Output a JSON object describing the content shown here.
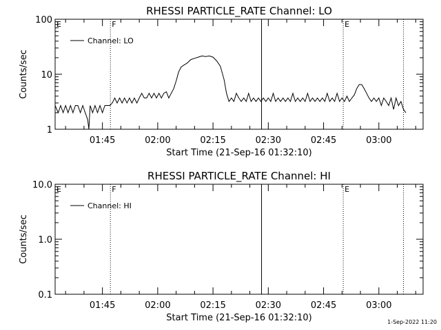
{
  "footer": {
    "timestamp": "1-Sep-2022 11:20"
  },
  "chart_data": [
    {
      "type": "line",
      "title": "RHESSI PARTICLE_RATE Channel: LO",
      "xlabel": "Start Time (21-Sep-16 01:32:10)",
      "ylabel": "Counts/sec",
      "y_scale": "log",
      "ylim": [
        1,
        100
      ],
      "y_ticks": [
        "1",
        "10",
        "100"
      ],
      "xlim": [
        "01:32:10",
        "03:12:00"
      ],
      "x_ticks": [
        "01:45",
        "02:00",
        "02:15",
        "02:30",
        "02:45",
        "03:00"
      ],
      "legend": {
        "entries": [
          "Channel: LO"
        ],
        "placement": "top-left"
      },
      "grid": false,
      "flags": [
        {
          "label": "E",
          "time": "01:32:10",
          "line": "none"
        },
        {
          "label": "F",
          "time": "01:47:10",
          "line": "dotted"
        },
        {
          "label": "",
          "time": "02:28:10",
          "line": "solid"
        },
        {
          "label": "E",
          "time": "02:50:20",
          "line": "dotted"
        },
        {
          "label": "",
          "time": "03:06:40",
          "line": "dotted"
        }
      ],
      "series": [
        {
          "name": "Channel: LO",
          "points": [
            [
              "01:32:10",
              2.7
            ],
            [
              "01:33:00",
              2.0
            ],
            [
              "01:33:40",
              2.7
            ],
            [
              "01:34:20",
              2.0
            ],
            [
              "01:35:00",
              2.7
            ],
            [
              "01:35:40",
              2.0
            ],
            [
              "01:36:20",
              2.7
            ],
            [
              "01:37:00",
              2.0
            ],
            [
              "01:37:40",
              2.7
            ],
            [
              "01:38:20",
              2.7
            ],
            [
              "01:39:00",
              2.0
            ],
            [
              "01:39:40",
              2.7
            ],
            [
              "01:40:20",
              2.0
            ],
            [
              "01:41:00",
              1.5
            ],
            [
              "01:41:20",
              1.0
            ],
            [
              "01:41:40",
              2.7
            ],
            [
              "01:42:20",
              2.0
            ],
            [
              "01:43:00",
              2.7
            ],
            [
              "01:43:40",
              2.0
            ],
            [
              "01:44:20",
              2.7
            ],
            [
              "01:45:00",
              2.0
            ],
            [
              "01:45:40",
              2.7
            ],
            [
              "01:46:20",
              2.7
            ],
            [
              "01:47:00",
              2.7
            ],
            [
              "01:47:40",
              3.0
            ],
            [
              "01:48:20",
              3.7
            ],
            [
              "01:49:00",
              3.0
            ],
            [
              "01:49:40",
              3.7
            ],
            [
              "01:50:20",
              3.0
            ],
            [
              "01:51:00",
              3.7
            ],
            [
              "01:51:40",
              3.0
            ],
            [
              "01:52:20",
              3.7
            ],
            [
              "01:53:00",
              3.0
            ],
            [
              "01:53:40",
              3.7
            ],
            [
              "01:54:20",
              3.0
            ],
            [
              "01:55:00",
              3.7
            ],
            [
              "01:55:40",
              4.5
            ],
            [
              "01:56:20",
              3.7
            ],
            [
              "01:57:00",
              3.7
            ],
            [
              "01:57:40",
              4.5
            ],
            [
              "01:58:20",
              3.7
            ],
            [
              "01:59:00",
              4.5
            ],
            [
              "01:59:40",
              3.7
            ],
            [
              "02:00:20",
              4.5
            ],
            [
              "02:01:00",
              3.7
            ],
            [
              "02:01:40",
              4.5
            ],
            [
              "02:02:20",
              4.8
            ],
            [
              "02:03:00",
              3.7
            ],
            [
              "02:03:40",
              4.5
            ],
            [
              "02:04:20",
              5.5
            ],
            [
              "02:05:00",
              7.5
            ],
            [
              "02:05:40",
              11.0
            ],
            [
              "02:06:20",
              13.5
            ],
            [
              "02:07:00",
              14.5
            ],
            [
              "02:08:00",
              16.0
            ],
            [
              "02:09:00",
              18.5
            ],
            [
              "02:10:00",
              19.5
            ],
            [
              "02:11:00",
              20.5
            ],
            [
              "02:12:00",
              21.5
            ],
            [
              "02:13:00",
              21.0
            ],
            [
              "02:14:00",
              21.5
            ],
            [
              "02:15:00",
              20.5
            ],
            [
              "02:16:00",
              17.5
            ],
            [
              "02:17:00",
              14.0
            ],
            [
              "02:18:00",
              8.0
            ],
            [
              "02:18:40",
              4.5
            ],
            [
              "02:19:20",
              3.2
            ],
            [
              "02:20:00",
              3.7
            ],
            [
              "02:20:40",
              3.2
            ],
            [
              "02:21:20",
              4.5
            ],
            [
              "02:22:00",
              3.7
            ],
            [
              "02:22:40",
              3.2
            ],
            [
              "02:23:20",
              3.7
            ],
            [
              "02:24:00",
              3.2
            ],
            [
              "02:24:40",
              4.5
            ],
            [
              "02:25:20",
              3.2
            ],
            [
              "02:26:00",
              3.7
            ],
            [
              "02:26:40",
              3.2
            ],
            [
              "02:27:20",
              3.7
            ],
            [
              "02:28:00",
              3.2
            ],
            [
              "02:28:40",
              3.7
            ],
            [
              "02:29:20",
              3.2
            ],
            [
              "02:30:00",
              3.7
            ],
            [
              "02:30:40",
              3.2
            ],
            [
              "02:31:20",
              4.5
            ],
            [
              "02:32:00",
              3.2
            ],
            [
              "02:32:40",
              3.7
            ],
            [
              "02:33:20",
              3.2
            ],
            [
              "02:34:00",
              3.7
            ],
            [
              "02:34:40",
              3.2
            ],
            [
              "02:35:20",
              3.7
            ],
            [
              "02:36:00",
              3.2
            ],
            [
              "02:36:40",
              4.5
            ],
            [
              "02:37:20",
              3.2
            ],
            [
              "02:38:00",
              3.7
            ],
            [
              "02:38:40",
              3.2
            ],
            [
              "02:39:20",
              3.7
            ],
            [
              "02:40:00",
              3.2
            ],
            [
              "02:40:40",
              4.5
            ],
            [
              "02:41:20",
              3.2
            ],
            [
              "02:42:00",
              3.7
            ],
            [
              "02:42:40",
              3.2
            ],
            [
              "02:43:20",
              3.7
            ],
            [
              "02:44:00",
              3.2
            ],
            [
              "02:44:40",
              3.7
            ],
            [
              "02:45:20",
              3.2
            ],
            [
              "02:46:00",
              4.5
            ],
            [
              "02:46:40",
              3.2
            ],
            [
              "02:47:20",
              3.7
            ],
            [
              "02:48:00",
              3.2
            ],
            [
              "02:48:40",
              4.5
            ],
            [
              "02:49:20",
              3.2
            ],
            [
              "02:50:00",
              3.7
            ],
            [
              "02:50:40",
              3.2
            ],
            [
              "02:51:20",
              4.0
            ],
            [
              "02:52:00",
              3.2
            ],
            [
              "02:52:40",
              3.7
            ],
            [
              "02:53:20",
              4.2
            ],
            [
              "02:54:00",
              5.5
            ],
            [
              "02:54:40",
              6.5
            ],
            [
              "02:55:20",
              6.5
            ],
            [
              "02:56:00",
              5.5
            ],
            [
              "02:56:40",
              4.5
            ],
            [
              "02:57:20",
              3.7
            ],
            [
              "02:58:00",
              3.2
            ],
            [
              "02:58:40",
              3.7
            ],
            [
              "02:59:20",
              3.2
            ],
            [
              "03:00:00",
              3.7
            ],
            [
              "03:00:40",
              2.7
            ],
            [
              "03:01:20",
              3.7
            ],
            [
              "03:02:00",
              3.2
            ],
            [
              "03:02:40",
              2.7
            ],
            [
              "03:03:20",
              3.7
            ],
            [
              "03:04:00",
              2.3
            ],
            [
              "03:04:40",
              3.7
            ],
            [
              "03:05:20",
              2.7
            ],
            [
              "03:06:00",
              3.2
            ],
            [
              "03:06:40",
              2.3
            ],
            [
              "03:07:20",
              2.0
            ]
          ]
        }
      ]
    },
    {
      "type": "line",
      "title": "RHESSI PARTICLE_RATE Channel: HI",
      "xlabel": "Start Time (21-Sep-16 01:32:10)",
      "ylabel": "Counts/sec",
      "y_scale": "log",
      "ylim": [
        0.1,
        10.0
      ],
      "y_ticks": [
        "0.1",
        "1.0",
        "10.0"
      ],
      "xlim": [
        "01:32:10",
        "03:12:00"
      ],
      "x_ticks": [
        "01:45",
        "02:00",
        "02:15",
        "02:30",
        "02:45",
        "03:00"
      ],
      "legend": {
        "entries": [
          "Channel: HI"
        ],
        "placement": "top-left"
      },
      "grid": false,
      "flags": [
        {
          "label": "E",
          "time": "01:32:10",
          "line": "none"
        },
        {
          "label": "F",
          "time": "01:47:10",
          "line": "dotted"
        },
        {
          "label": "",
          "time": "02:28:10",
          "line": "solid"
        },
        {
          "label": "E",
          "time": "02:50:20",
          "line": "dotted"
        },
        {
          "label": "",
          "time": "03:06:40",
          "line": "dotted"
        }
      ],
      "series": [
        {
          "name": "Channel: HI",
          "points": []
        }
      ]
    }
  ]
}
